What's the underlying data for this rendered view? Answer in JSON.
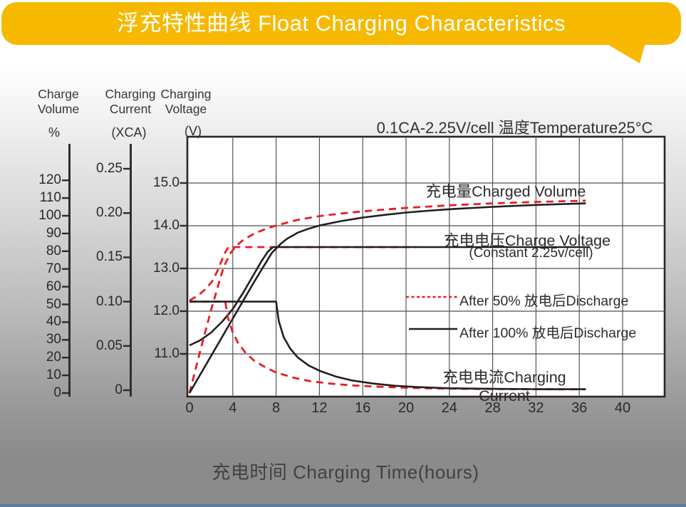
{
  "banner": {
    "title": "浮充特性曲线 Float Charging Characteristics",
    "color": "#F7B900"
  },
  "condition": "0.1CA-2.25V/cell   温度Temperature25°C",
  "left_axes": [
    {
      "id": "charge-volume",
      "line1": "Charge",
      "line2": "Volume",
      "unit": "%",
      "ticks": [
        "120",
        "110",
        "100",
        "90",
        "80",
        "70",
        "60",
        "50",
        "40",
        "30",
        "20",
        "10",
        "0"
      ]
    },
    {
      "id": "charging-current",
      "line1": "Charging",
      "line2": "Current",
      "unit": "(XCA)",
      "ticks": [
        "0.25",
        "0.20",
        "0.15",
        "0.10",
        "0.05",
        "0"
      ]
    },
    {
      "id": "charging-voltage",
      "line1": "Charging",
      "line2": "Voltage",
      "unit": "(V)",
      "ticks": [
        "15.0",
        "14.0",
        "13.0",
        "12.0",
        "11.0"
      ]
    }
  ],
  "x_axis": {
    "title": "充电时间 Charging Time(hours)",
    "ticks": [
      0,
      4,
      8,
      12,
      16,
      20,
      24,
      28,
      32,
      36,
      40
    ]
  },
  "annotations": {
    "charged_volume": "充电量Charged Volume",
    "charge_voltage": "充电电压Charge Voltage",
    "charge_voltage_sub": "(Constant 2.25v/cell)",
    "charging_current": "充电电流Charging Current"
  },
  "legend": [
    {
      "label": "After 50% 放电后Discharge",
      "style": "dashed",
      "color": "#E81C24"
    },
    {
      "label": "After 100% 放电后Discharge",
      "style": "solid",
      "color": "#231F20"
    }
  ],
  "chart_data": {
    "type": "line",
    "title": "浮充特性曲线 Float Charging Characteristics",
    "condition": "0.1CA-2.25V/cell, Temperature 25°C",
    "xlabel": "充电时间 Charging Time(hours)",
    "x_unit": "hours",
    "x_range": [
      0,
      44
    ],
    "x_ticks": [
      0,
      4,
      8,
      12,
      16,
      20,
      24,
      28,
      32,
      36,
      40
    ],
    "grid": true,
    "axes_ranges": {
      "voltage_V": [
        10,
        15.3
      ],
      "current_XCA": [
        0,
        0.25
      ],
      "volume_pct": [
        0,
        120
      ]
    },
    "series": [
      {
        "name": "charge_voltage_after_50pct_discharge",
        "axis": "voltage",
        "style": "dashed",
        "color": "#E81C24",
        "points": [
          [
            0,
            12.25
          ],
          [
            0.8,
            12.37
          ],
          [
            1.5,
            12.52
          ],
          [
            2.1,
            12.7
          ],
          [
            2.6,
            12.95
          ],
          [
            3.0,
            13.2
          ],
          [
            3.3,
            13.38
          ],
          [
            3.6,
            13.5
          ],
          [
            21,
            13.5
          ]
        ]
      },
      {
        "name": "charge_voltage_after_100pct_discharge",
        "axis": "voltage",
        "style": "solid",
        "color": "#231F20",
        "points": [
          [
            0,
            11.2
          ],
          [
            1,
            11.32
          ],
          [
            2,
            11.5
          ],
          [
            3,
            11.75
          ],
          [
            4,
            12.05
          ],
          [
            5,
            12.45
          ],
          [
            5.8,
            12.8
          ],
          [
            6.6,
            13.15
          ],
          [
            7.2,
            13.38
          ],
          [
            7.7,
            13.5
          ],
          [
            37,
            13.5
          ]
        ]
      },
      {
        "name": "charging_current_after_50pct_discharge",
        "axis": "current",
        "style": "dashed",
        "color": "#E81C24",
        "points": [
          [
            0,
            0.1
          ],
          [
            3.3,
            0.1
          ],
          [
            3.55,
            0.082
          ],
          [
            4,
            0.065
          ],
          [
            4.5,
            0.053
          ],
          [
            5.2,
            0.042
          ],
          [
            6,
            0.033
          ],
          [
            7,
            0.026
          ],
          [
            8,
            0.02
          ],
          [
            9.5,
            0.0145
          ],
          [
            11,
            0.0105
          ],
          [
            13,
            0.0075
          ],
          [
            15,
            0.0055
          ],
          [
            17,
            0.0042
          ],
          [
            19,
            0.0032
          ],
          [
            22,
            0.0022
          ],
          [
            26,
            0.0015
          ],
          [
            30,
            0.0012
          ],
          [
            36.6,
            0.001
          ]
        ]
      },
      {
        "name": "charging_current_after_100pct_discharge",
        "axis": "current",
        "style": "solid",
        "color": "#231F20",
        "points": [
          [
            0,
            0.1
          ],
          [
            8,
            0.1
          ],
          [
            8.25,
            0.078
          ],
          [
            8.7,
            0.06
          ],
          [
            9.3,
            0.047
          ],
          [
            10,
            0.037
          ],
          [
            11,
            0.028
          ],
          [
            12,
            0.022
          ],
          [
            13.5,
            0.0155
          ],
          [
            15,
            0.011
          ],
          [
            17,
            0.0075
          ],
          [
            19,
            0.005
          ],
          [
            21,
            0.0035
          ],
          [
            24,
            0.0022
          ],
          [
            28,
            0.0015
          ],
          [
            32,
            0.0012
          ],
          [
            36.6,
            0.0011
          ]
        ]
      },
      {
        "name": "charged_volume_after_50pct_discharge",
        "axis": "volume",
        "style": "dashed",
        "color": "#E81C24",
        "points": [
          [
            0,
            0
          ],
          [
            1,
            24
          ],
          [
            2,
            47
          ],
          [
            3,
            68
          ],
          [
            3.3,
            73
          ],
          [
            3.8,
            79
          ],
          [
            4.3,
            83
          ],
          [
            5,
            86.5
          ],
          [
            6,
            90
          ],
          [
            7,
            92.5
          ],
          [
            8,
            94.5
          ],
          [
            10,
            97.7
          ],
          [
            12,
            99.8
          ],
          [
            14,
            101.3
          ],
          [
            16,
            102.5
          ],
          [
            18,
            103.5
          ],
          [
            20,
            104.4
          ],
          [
            24,
            105.9
          ],
          [
            28,
            107
          ],
          [
            32,
            107.8
          ],
          [
            36.6,
            108.5
          ]
        ]
      },
      {
        "name": "charged_volume_after_100pct_discharge",
        "axis": "volume",
        "style": "solid",
        "color": "#231F20",
        "points": [
          [
            0,
            0
          ],
          [
            2,
            21
          ],
          [
            4,
            42
          ],
          [
            6,
            63
          ],
          [
            7.6,
            79
          ],
          [
            8.4,
            84
          ],
          [
            9,
            87
          ],
          [
            10,
            90.5
          ],
          [
            11,
            92.7
          ],
          [
            12,
            94.5
          ],
          [
            14,
            97
          ],
          [
            16,
            99
          ],
          [
            18,
            100.5
          ],
          [
            20,
            101.8
          ],
          [
            22,
            102.8
          ],
          [
            24,
            103.7
          ],
          [
            28,
            105
          ],
          [
            32,
            106.1
          ],
          [
            36.6,
            107
          ]
        ]
      }
    ]
  }
}
